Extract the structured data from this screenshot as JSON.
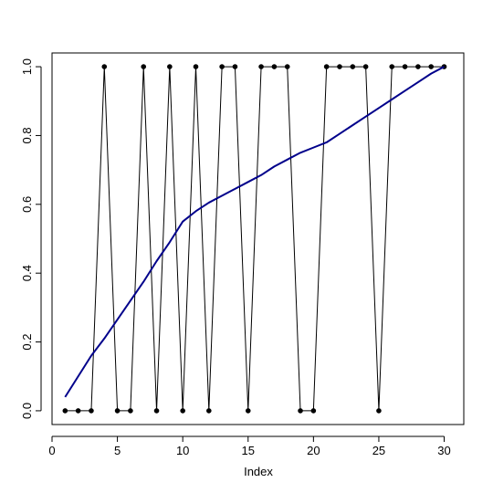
{
  "chart_data": {
    "type": "line",
    "xlabel": "Index",
    "ylabel": "",
    "xlim": [
      0,
      31.5
    ],
    "ylim": [
      -0.04,
      1.04
    ],
    "x_ticks": [
      0,
      5,
      10,
      15,
      20,
      25,
      30
    ],
    "y_ticks": [
      0.0,
      0.2,
      0.4,
      0.6,
      0.8,
      1.0
    ],
    "x_tick_labels": [
      "0",
      "5",
      "10",
      "15",
      "20",
      "25",
      "30"
    ],
    "y_tick_labels": [
      "0.0",
      "0.2",
      "0.4",
      "0.6",
      "0.8",
      "1.0"
    ],
    "grid": false,
    "series": [
      {
        "style": "points-and-lines",
        "color": "#000000",
        "x": [
          1,
          2,
          3,
          4,
          5,
          6,
          7,
          8,
          9,
          10,
          11,
          12,
          13,
          14,
          15,
          16,
          17,
          18,
          19,
          20,
          21,
          22,
          23,
          24,
          25,
          26,
          27,
          28,
          29,
          30
        ],
        "values": [
          0,
          0,
          0,
          1,
          0,
          0,
          1,
          0,
          1,
          0,
          1,
          0,
          1,
          1,
          0,
          1,
          1,
          1,
          0,
          0,
          1,
          1,
          1,
          1,
          0,
          1,
          1,
          1,
          1,
          1
        ]
      },
      {
        "style": "line",
        "color": "#00008b",
        "x": [
          1,
          2,
          3,
          4,
          5,
          6,
          7,
          8,
          9,
          10,
          11,
          12,
          13,
          14,
          15,
          16,
          17,
          18,
          19,
          20,
          21,
          22,
          23,
          24,
          25,
          26,
          27,
          28,
          29,
          30
        ],
        "values": [
          0.04,
          0.1,
          0.16,
          0.21,
          0.265,
          0.32,
          0.375,
          0.435,
          0.49,
          0.55,
          0.58,
          0.605,
          0.625,
          0.645,
          0.665,
          0.685,
          0.71,
          0.73,
          0.75,
          0.765,
          0.78,
          0.805,
          0.83,
          0.855,
          0.88,
          0.905,
          0.93,
          0.955,
          0.98,
          1.0
        ]
      }
    ]
  }
}
